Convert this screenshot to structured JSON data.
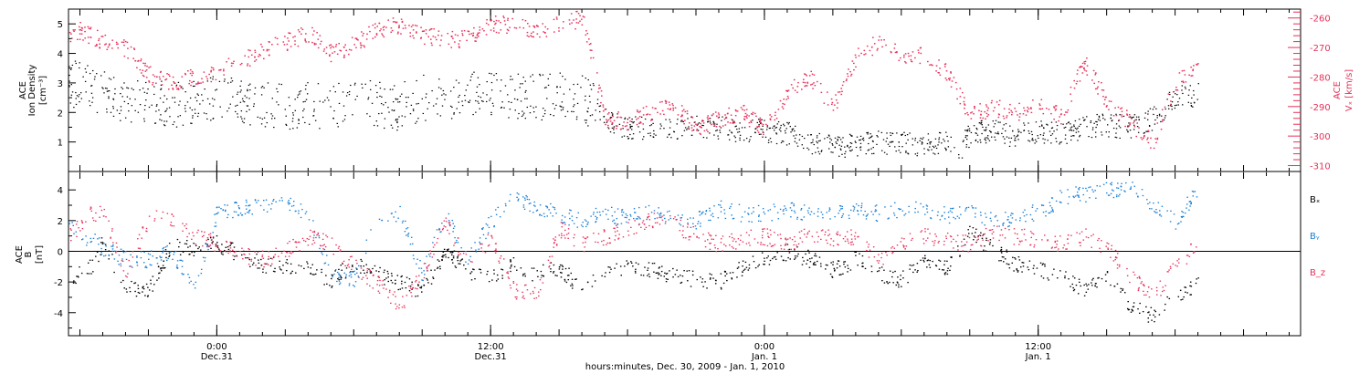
{
  "colors": {
    "density": "#000000",
    "velocity": "#e8305a",
    "bx": "#000000",
    "by": "#1a7fd4",
    "bz": "#e8305a",
    "frame": "#000000"
  },
  "chart_data": [
    {
      "type": "scatter",
      "title": "",
      "ylabel_left": [
        "ACE",
        "Ion Density",
        "[cm⁻³]"
      ],
      "ylabel_right": [
        "ACE",
        "Vₓ [km/s]"
      ],
      "x_unit": "hours since Dec. 30, 2009 00:00",
      "xlim": [
        17.5,
        71.5
      ],
      "ylim_left": [
        0,
        5.5
      ],
      "ylim_right": [
        -312,
        -257
      ],
      "left_ticks": [
        "1",
        "2",
        "3",
        "4",
        "5"
      ],
      "right_ticks": [
        "-260",
        "-270",
        "-280",
        "-290",
        "-300",
        "-310"
      ],
      "series": [
        {
          "name": "",
          "axis": "left",
          "x": [
            17.5,
            18,
            18.5,
            19,
            20,
            21,
            22,
            23,
            24,
            25,
            26,
            27,
            28,
            29,
            30,
            31,
            32,
            33,
            34,
            35,
            36,
            37,
            38,
            39,
            40,
            40.5,
            41,
            42,
            43,
            44,
            45,
            46,
            47,
            48,
            49,
            50,
            51,
            52,
            53,
            54,
            55,
            56,
            56.5,
            57,
            58,
            59,
            60,
            61,
            62,
            63,
            64,
            65,
            66,
            67
          ],
          "y": [
            2.9,
            3.1,
            2.8,
            2.7,
            2.4,
            2.5,
            2.3,
            2.4,
            2.5,
            2.4,
            2.3,
            2.2,
            2.3,
            2.2,
            2.4,
            2.3,
            2.2,
            2.5,
            2.4,
            2.6,
            2.7,
            2.6,
            2.5,
            2.7,
            2.5,
            2.2,
            1.8,
            1.5,
            1.5,
            1.4,
            1.6,
            1.5,
            1.4,
            1.4,
            1.3,
            1.0,
            0.9,
            0.9,
            1.0,
            1.0,
            0.9,
            1.0,
            0.7,
            1.3,
            1.4,
            1.2,
            1.4,
            1.3,
            1.5,
            1.6,
            1.5,
            1.8,
            2.5,
            2.6
          ]
        },
        {
          "name": "",
          "axis": "right",
          "x": [
            17.5,
            18,
            19,
            20,
            21,
            22,
            23,
            24,
            25,
            26,
            27,
            28,
            29,
            30,
            31,
            32,
            33,
            34,
            35,
            36,
            37,
            38,
            39,
            40,
            40.5,
            41,
            42,
            43,
            44,
            45,
            46,
            47,
            48,
            49,
            50,
            51,
            52,
            53,
            54,
            55,
            56,
            57,
            58,
            59,
            60,
            61,
            62,
            63,
            64,
            65,
            66,
            67
          ],
          "y": [
            -267,
            -264,
            -268,
            -270,
            -279,
            -282,
            -280,
            -278,
            -275,
            -271,
            -268,
            -265,
            -272,
            -269,
            -264,
            -262,
            -266,
            -267,
            -267,
            -262,
            -262,
            -264,
            -262,
            -260,
            -275,
            -294,
            -295,
            -292,
            -290,
            -297,
            -294,
            -292,
            -297,
            -285,
            -280,
            -290,
            -273,
            -268,
            -272,
            -273,
            -278,
            -293,
            -290,
            -292,
            -290,
            -293,
            -275,
            -288,
            -295,
            -302,
            -282,
            -276
          ]
        }
      ]
    },
    {
      "type": "scatter",
      "title": "",
      "ylabel": [
        "ACE",
        "B",
        "[nT]"
      ],
      "x_unit": "hours since Dec. 30, 2009 00:00",
      "xlim": [
        17.5,
        71.5
      ],
      "ylim": [
        -5.5,
        5.2
      ],
      "ticks": [
        "4",
        "2",
        "0",
        "-2",
        "-4"
      ],
      "series": [
        {
          "name": "Bₓ",
          "x": [
            17.5,
            18.5,
            19,
            20,
            21,
            22,
            23,
            24,
            25,
            26,
            27,
            28,
            29,
            30,
            31,
            32,
            33,
            34,
            35,
            36,
            37,
            38,
            39,
            40,
            41,
            42,
            43,
            44,
            45,
            46,
            47,
            48,
            49,
            50,
            51,
            52,
            53,
            54,
            55,
            56,
            57,
            58,
            59,
            60,
            61,
            62,
            63,
            64,
            65,
            66,
            67
          ],
          "y": [
            -1.8,
            -1.0,
            0.6,
            -2.4,
            -2.6,
            0.4,
            0.2,
            0.5,
            -0.2,
            -0.8,
            -1.0,
            -1.2,
            -1.8,
            -0.8,
            -1.5,
            -2.0,
            -2.6,
            0.0,
            -1.2,
            -1.8,
            -0.8,
            -1.5,
            -1.0,
            -2.5,
            -1.5,
            -0.8,
            -1.2,
            -1.5,
            -1.8,
            -2.0,
            -1.0,
            -0.5,
            0.0,
            -0.5,
            -1.2,
            -0.5,
            -1.5,
            -1.8,
            -0.5,
            -1.0,
            1.2,
            0.2,
            -0.8,
            -1.2,
            -1.5,
            -2.5,
            -1.5,
            -3.5,
            -4.2,
            -3.0,
            -2.0
          ]
        },
        {
          "name": "Bᵧ",
          "x": [
            17.5,
            18.5,
            19,
            20,
            21,
            22,
            23,
            24,
            25,
            26,
            27,
            28,
            29,
            30,
            31,
            32,
            33,
            34,
            35,
            36,
            37,
            38,
            39,
            40,
            41,
            42,
            43,
            44,
            45,
            46,
            47,
            48,
            49,
            50,
            51,
            52,
            53,
            54,
            55,
            56,
            57,
            58,
            59,
            60,
            61,
            62,
            63,
            64,
            65,
            66,
            67
          ],
          "y": [
            1.5,
            0.8,
            0.2,
            -0.5,
            -0.5,
            0.0,
            -2.2,
            2.5,
            2.8,
            3.0,
            3.2,
            2.5,
            -1.5,
            -1.8,
            2.0,
            2.5,
            -1.5,
            2.5,
            -0.5,
            2.0,
            3.5,
            3.0,
            2.5,
            2.0,
            2.5,
            2.2,
            2.5,
            2.2,
            2.0,
            2.8,
            2.5,
            2.5,
            2.8,
            2.5,
            2.6,
            2.7,
            2.5,
            2.8,
            2.7,
            2.4,
            2.5,
            2.0,
            2.3,
            2.6,
            3.5,
            3.8,
            4.0,
            4.2,
            3.0,
            2.0,
            4.0
          ]
        },
        {
          "name": "B_z",
          "x": [
            17.5,
            18.5,
            19,
            20,
            21,
            22,
            23,
            24,
            25,
            26,
            27,
            28,
            29,
            30,
            31,
            32,
            33,
            34,
            35,
            36,
            37,
            38,
            39,
            40,
            41,
            42,
            43,
            44,
            45,
            46,
            47,
            48,
            49,
            50,
            51,
            52,
            53,
            54,
            55,
            56,
            57,
            58,
            59,
            60,
            61,
            62,
            63,
            64,
            65,
            66,
            67
          ],
          "y": [
            1.0,
            2.5,
            2.6,
            -1.5,
            2.2,
            2.0,
            1.0,
            0.5,
            -0.2,
            -0.5,
            0.0,
            1.0,
            0.5,
            -1.0,
            -2.0,
            -3.5,
            -1.5,
            2.0,
            -1.0,
            1.0,
            -2.5,
            -2.8,
            1.5,
            0.5,
            1.0,
            1.5,
            2.0,
            1.8,
            1.0,
            0.5,
            0.8,
            1.0,
            0.5,
            1.2,
            0.8,
            1.0,
            -0.5,
            0.5,
            1.0,
            0.8,
            0.5,
            1.2,
            1.0,
            0.8,
            0.5,
            1.0,
            0.2,
            -1.5,
            -3.0,
            -1.0,
            0.5
          ]
        }
      ],
      "legend_placement": "right"
    }
  ],
  "x_axis": {
    "ticks": [
      {
        "x": 24,
        "time": "0:00",
        "date": "Dec.31"
      },
      {
        "x": 36,
        "time": "12:00",
        "date": "Dec.31"
      },
      {
        "x": 48,
        "time": "0:00",
        "date": "Jan. 1"
      },
      {
        "x": 60,
        "time": "12:00",
        "date": "Jan. 1"
      }
    ],
    "label": "hours:minutes, Dec. 30, 2009 - Jan. 1, 2010"
  }
}
